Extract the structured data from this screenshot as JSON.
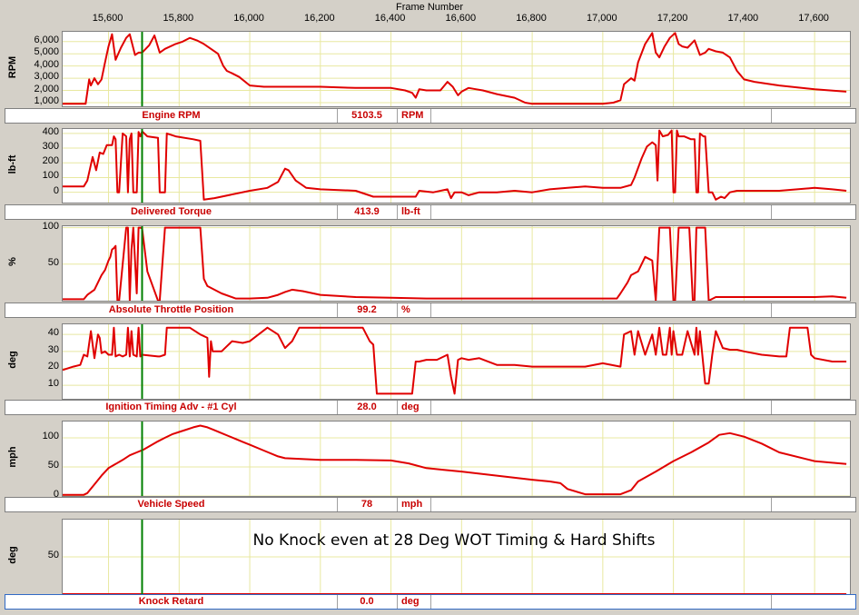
{
  "chart_data": {
    "type": "line",
    "x_axis": {
      "label": "Frame Number",
      "range": [
        15470,
        17700
      ],
      "ticks": [
        15600,
        15800,
        16000,
        16200,
        16400,
        16600,
        16800,
        17000,
        17200,
        17400,
        17600
      ],
      "tick_labels": [
        "15,600",
        "15,800",
        "16,000",
        "16,200",
        "16,400",
        "16,600",
        "16,800",
        "17,000",
        "17,200",
        "17,400",
        "17,600"
      ]
    },
    "cursor_frame": 15695,
    "colors": {
      "series": "#e00000",
      "cursor": "#008000",
      "grid": "#e8e8a0"
    },
    "panels": [
      {
        "id": "rpm",
        "ylabel": "RPM",
        "ylim": [
          700,
          6800
        ],
        "yticks": [
          1000,
          2000,
          3000,
          4000,
          5000,
          6000
        ],
        "ytick_labels": [
          "1,000",
          "2,000",
          "3,000",
          "4,000",
          "5,000",
          "6,000"
        ],
        "name": "Engine RPM",
        "value": "5103.5",
        "unit": "RPM",
        "x": [
          15470,
          15535,
          15545,
          15550,
          15560,
          15570,
          15580,
          15590,
          15600,
          15610,
          15620,
          15635,
          15650,
          15660,
          15675,
          15685,
          15695,
          15715,
          15730,
          15745,
          15760,
          15790,
          15810,
          15830,
          15850,
          15870,
          15890,
          15910,
          15925,
          15935,
          15950,
          15970,
          16000,
          16040,
          16100,
          16200,
          16300,
          16400,
          16440,
          16460,
          16470,
          16480,
          16500,
          16540,
          16560,
          16575,
          16590,
          16600,
          16620,
          16640,
          16660,
          16700,
          16750,
          16780,
          16800,
          16850,
          16900,
          16950,
          17000,
          17030,
          17050,
          17060,
          17080,
          17090,
          17100,
          17120,
          17140,
          17150,
          17160,
          17175,
          17190,
          17205,
          17215,
          17225,
          17240,
          17260,
          17275,
          17290,
          17300,
          17320,
          17340,
          17360,
          17380,
          17400,
          17430,
          17500,
          17600,
          17690
        ],
        "y": [
          900,
          900,
          2900,
          2400,
          3000,
          2500,
          2900,
          4300,
          5600,
          6600,
          4500,
          5500,
          6300,
          6600,
          4900,
          5100,
          5100,
          5700,
          6500,
          5100,
          5400,
          5800,
          6000,
          6300,
          6100,
          5800,
          5400,
          5000,
          4000,
          3600,
          3400,
          3100,
          2400,
          2300,
          2300,
          2300,
          2200,
          2200,
          2000,
          1800,
          1400,
          2100,
          2000,
          2000,
          2700,
          2300,
          1600,
          1900,
          2200,
          2100,
          2000,
          1700,
          1400,
          1000,
          900,
          900,
          900,
          900,
          900,
          1000,
          1200,
          2500,
          3000,
          2800,
          4300,
          5800,
          6700,
          5100,
          4700,
          5600,
          6300,
          6700,
          5800,
          5600,
          5500,
          6100,
          4900,
          5100,
          5400,
          5200,
          5100,
          4700,
          3600,
          2900,
          2700,
          2400,
          2100,
          1900
        ]
      },
      {
        "id": "torque",
        "ylabel": "lb-ft",
        "ylim": [
          -70,
          430
        ],
        "yticks": [
          0,
          100,
          200,
          300,
          400
        ],
        "ytick_labels": [
          "0",
          "100",
          "200",
          "300",
          "400"
        ],
        "name": "Delivered Torque",
        "value": "413.9",
        "unit": "lb-ft",
        "x": [
          15470,
          15530,
          15540,
          15555,
          15565,
          15575,
          15585,
          15595,
          15610,
          15615,
          15620,
          15625,
          15630,
          15640,
          15650,
          15655,
          15660,
          15665,
          15670,
          15680,
          15685,
          15690,
          15695,
          15710,
          15740,
          15745,
          15760,
          15765,
          15790,
          15840,
          15860,
          15870,
          15900,
          16000,
          16050,
          16080,
          16100,
          16110,
          16130,
          16160,
          16200,
          16300,
          16350,
          16400,
          16470,
          16480,
          16520,
          16560,
          16570,
          16580,
          16600,
          16620,
          16650,
          16700,
          16750,
          16800,
          16850,
          16900,
          16950,
          17000,
          17050,
          17080,
          17090,
          17110,
          17125,
          17140,
          17150,
          17155,
          17160,
          17170,
          17185,
          17195,
          17200,
          17205,
          17210,
          17215,
          17230,
          17250,
          17260,
          17265,
          17270,
          17275,
          17285,
          17290,
          17300,
          17310,
          17320,
          17335,
          17345,
          17360,
          17380,
          17400,
          17450,
          17500,
          17600,
          17650,
          17690
        ],
        "y": [
          40,
          40,
          80,
          240,
          150,
          270,
          260,
          320,
          320,
          380,
          360,
          0,
          0,
          400,
          380,
          0,
          360,
          400,
          0,
          0,
          410,
          380,
          414,
          380,
          370,
          0,
          0,
          400,
          380,
          360,
          350,
          -50,
          -40,
          10,
          30,
          70,
          160,
          150,
          80,
          30,
          20,
          10,
          -30,
          -30,
          -30,
          10,
          0,
          20,
          -40,
          0,
          0,
          -20,
          0,
          0,
          10,
          0,
          20,
          30,
          40,
          30,
          30,
          50,
          100,
          230,
          310,
          340,
          320,
          80,
          420,
          380,
          390,
          420,
          0,
          0,
          420,
          380,
          380,
          360,
          360,
          0,
          0,
          400,
          380,
          380,
          0,
          0,
          -50,
          -30,
          -40,
          0,
          10,
          10,
          10,
          10,
          30,
          20,
          10
        ]
      },
      {
        "id": "throttle",
        "ylabel": "%",
        "ylim": [
          0,
          102
        ],
        "yticks": [
          50,
          100
        ],
        "ytick_labels": [
          "50",
          "100"
        ],
        "name": "Absolute Throttle Position",
        "value": "99.2",
        "unit": "%",
        "x": [
          15470,
          15530,
          15540,
          15560,
          15570,
          15580,
          15590,
          15600,
          15605,
          15610,
          15615,
          15620,
          15625,
          15630,
          15650,
          15655,
          15660,
          15665,
          15670,
          15680,
          15685,
          15690,
          15695,
          15710,
          15740,
          15745,
          15760,
          15765,
          15790,
          15820,
          15840,
          15860,
          15870,
          15880,
          15920,
          15960,
          16000,
          16050,
          16080,
          16100,
          16120,
          16150,
          16200,
          16300,
          16400,
          16500,
          16600,
          16700,
          16800,
          16900,
          17000,
          17040,
          17050,
          17070,
          17080,
          17100,
          17110,
          17120,
          17140,
          17150,
          17160,
          17170,
          17190,
          17200,
          17205,
          17215,
          17230,
          17245,
          17255,
          17260,
          17265,
          17275,
          17285,
          17290,
          17300,
          17320,
          17400,
          17500,
          17600,
          17650,
          17690
        ],
        "y": [
          2,
          2,
          8,
          15,
          25,
          35,
          42,
          55,
          60,
          70,
          72,
          75,
          0,
          0,
          100,
          100,
          0,
          70,
          100,
          10,
          100,
          100,
          99,
          40,
          0,
          0,
          100,
          100,
          100,
          100,
          100,
          100,
          30,
          20,
          10,
          3,
          3,
          4,
          8,
          12,
          15,
          13,
          8,
          5,
          4,
          3,
          3,
          3,
          3,
          3,
          3,
          3,
          10,
          25,
          35,
          40,
          50,
          60,
          55,
          0,
          100,
          100,
          100,
          0,
          0,
          100,
          100,
          100,
          0,
          0,
          100,
          100,
          100,
          100,
          0,
          5,
          5,
          5,
          5,
          6,
          4
        ]
      },
      {
        "id": "timing",
        "ylabel": "deg",
        "ylim": [
          2,
          46
        ],
        "yticks": [
          10,
          20,
          30,
          40
        ],
        "ytick_labels": [
          "10",
          "20",
          "30",
          "40"
        ],
        "name": "Ignition Timing Adv - #1 Cyl",
        "value": "28.0",
        "unit": "deg",
        "x": [
          15470,
          15500,
          15520,
          15530,
          15540,
          15550,
          15560,
          15570,
          15575,
          15580,
          15590,
          15600,
          15610,
          15615,
          15620,
          15630,
          15640,
          15650,
          15655,
          15660,
          15665,
          15670,
          15680,
          15685,
          15690,
          15695,
          15740,
          15745,
          15760,
          15765,
          15790,
          15830,
          15860,
          15880,
          15885,
          15890,
          15895,
          15920,
          15950,
          15980,
          16000,
          16050,
          16080,
          16100,
          16120,
          16140,
          16160,
          16200,
          16250,
          16300,
          16320,
          16340,
          16350,
          16360,
          16400,
          16430,
          16460,
          16470,
          16480,
          16500,
          16530,
          16560,
          16570,
          16580,
          16590,
          16600,
          16620,
          16650,
          16700,
          16750,
          16800,
          16850,
          16900,
          16950,
          17000,
          17050,
          17060,
          17080,
          17090,
          17100,
          17120,
          17140,
          17150,
          17160,
          17170,
          17180,
          17190,
          17195,
          17200,
          17210,
          17225,
          17240,
          17260,
          17265,
          17270,
          17275,
          17290,
          17300,
          17310,
          17320,
          17340,
          17360,
          17380,
          17400,
          17450,
          17500,
          17520,
          17530,
          17540,
          17580,
          17590,
          17600,
          17650,
          17690
        ],
        "y": [
          19,
          21,
          22,
          28,
          27,
          42,
          26,
          40,
          38,
          29,
          30,
          28,
          28,
          44,
          27,
          28,
          27,
          28,
          44,
          27,
          42,
          28,
          27,
          44,
          27,
          28,
          27,
          27,
          28,
          44,
          44,
          44,
          40,
          38,
          15,
          36,
          30,
          30,
          36,
          35,
          36,
          44,
          40,
          32,
          36,
          44,
          44,
          44,
          44,
          44,
          44,
          36,
          34,
          5,
          5,
          5,
          5,
          24,
          24,
          25,
          25,
          28,
          15,
          5,
          25,
          26,
          25,
          26,
          22,
          22,
          21,
          21,
          21,
          21,
          23,
          21,
          40,
          42,
          28,
          42,
          28,
          40,
          28,
          44,
          28,
          28,
          44,
          28,
          42,
          28,
          28,
          42,
          28,
          44,
          28,
          42,
          11,
          11,
          28,
          42,
          32,
          31,
          31,
          30,
          28,
          27,
          27,
          44,
          44,
          44,
          28,
          26,
          24,
          24
        ]
      },
      {
        "id": "speed",
        "ylabel": "mph",
        "ylim": [
          0,
          128
        ],
        "yticks": [
          0,
          50,
          100
        ],
        "ytick_labels": [
          "0",
          "50",
          "100"
        ],
        "name": "Vehicle Speed",
        "value": "78",
        "unit": "mph",
        "x": [
          15470,
          15530,
          15540,
          15560,
          15580,
          15600,
          15620,
          15640,
          15660,
          15680,
          15700,
          15720,
          15740,
          15760,
          15780,
          15800,
          15820,
          15840,
          15860,
          15880,
          15900,
          15920,
          15940,
          15960,
          15980,
          16000,
          16040,
          16080,
          16100,
          16200,
          16300,
          16400,
          16450,
          16500,
          16550,
          16600,
          16700,
          16800,
          16850,
          16880,
          16900,
          16950,
          17000,
          17030,
          17050,
          17080,
          17100,
          17150,
          17200,
          17250,
          17300,
          17330,
          17360,
          17400,
          17450,
          17500,
          17600,
          17690
        ],
        "y": [
          2,
          2,
          5,
          20,
          35,
          48,
          55,
          62,
          70,
          75,
          80,
          87,
          94,
          100,
          106,
          110,
          114,
          118,
          121,
          118,
          113,
          108,
          103,
          98,
          93,
          88,
          78,
          68,
          65,
          62,
          62,
          61,
          56,
          48,
          45,
          42,
          35,
          28,
          25,
          22,
          12,
          3,
          3,
          3,
          3,
          10,
          25,
          42,
          60,
          75,
          92,
          105,
          108,
          102,
          90,
          75,
          60,
          55
        ]
      },
      {
        "id": "knock",
        "ylabel": "deg",
        "ylim": [
          0,
          100
        ],
        "yticks": [
          50
        ],
        "ytick_labels": [
          "50"
        ],
        "name": "Knock Retard",
        "value": "0.0",
        "unit": "deg",
        "x": [
          15470,
          17690
        ],
        "y": [
          0,
          0
        ]
      }
    ],
    "annotation": "No Knock even at 28 Deg WOT Timing & Hard Shifts"
  }
}
